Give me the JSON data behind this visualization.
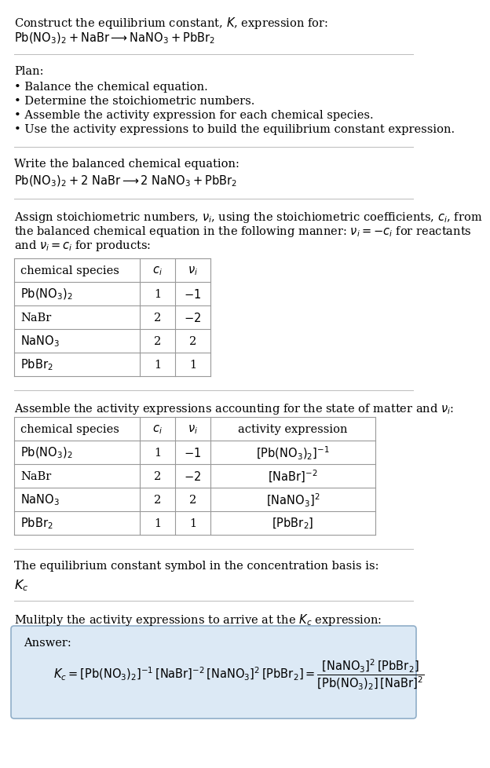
{
  "bg_color": "#ffffff",
  "text_color": "#000000",
  "title_line1": "Construct the equilibrium constant, $K$, expression for:",
  "title_line2": "$\\mathrm{Pb(NO_3)_2 + NaBr \\longrightarrow NaNO_3 + PbBr_2}$",
  "plan_header": "Plan:",
  "plan_items": [
    "• Balance the chemical equation.",
    "• Determine the stoichiometric numbers.",
    "• Assemble the activity expression for each chemical species.",
    "• Use the activity expressions to build the equilibrium constant expression."
  ],
  "balanced_header": "Write the balanced chemical equation:",
  "balanced_eq": "$\\mathrm{Pb(NO_3)_2 + 2\\ NaBr \\longrightarrow 2\\ NaNO_3 + PbBr_2}$",
  "stoich_intro_lines": [
    "Assign stoichiometric numbers, $\\nu_i$, using the stoichiometric coefficients, $c_i$, from",
    "the balanced chemical equation in the following manner: $\\nu_i = -c_i$ for reactants",
    "and $\\nu_i = c_i$ for products:"
  ],
  "table1_headers": [
    "chemical species",
    "$c_i$",
    "$\\nu_i$"
  ],
  "table1_rows": [
    [
      "$\\mathrm{Pb(NO_3)_2}$",
      "1",
      "$-1$"
    ],
    [
      "NaBr",
      "2",
      "$-2$"
    ],
    [
      "$\\mathrm{NaNO_3}$",
      "2",
      "2"
    ],
    [
      "$\\mathrm{PbBr_2}$",
      "1",
      "1"
    ]
  ],
  "assemble_header": "Assemble the activity expressions accounting for the state of matter and $\\nu_i$:",
  "table2_headers": [
    "chemical species",
    "$c_i$",
    "$\\nu_i$",
    "activity expression"
  ],
  "table2_rows": [
    [
      "$\\mathrm{Pb(NO_3)_2}$",
      "1",
      "$-1$",
      "$[\\mathrm{Pb(NO_3)_2}]^{-1}$"
    ],
    [
      "NaBr",
      "2",
      "$-2$",
      "$[\\mathrm{NaBr}]^{-2}$"
    ],
    [
      "$\\mathrm{NaNO_3}$",
      "2",
      "2",
      "$[\\mathrm{NaNO_3}]^{2}$"
    ],
    [
      "$\\mathrm{PbBr_2}$",
      "1",
      "1",
      "$[\\mathrm{PbBr_2}]$"
    ]
  ],
  "kc_intro": "The equilibrium constant symbol in the concentration basis is:",
  "kc_symbol": "$K_c$",
  "multiply_header": "Mulitply the activity expressions to arrive at the $K_c$ expression:",
  "answer_label": "Answer:",
  "answer_line1": "$K_c = [\\mathrm{Pb(NO_3)_2}]^{-1}\\,[\\mathrm{NaBr}]^{-2}\\,[\\mathrm{NaNO_3}]^{2}\\,[\\mathrm{PbBr_2}] = \\dfrac{[\\mathrm{NaNO_3}]^{2}\\,[\\mathrm{PbBr_2}]}{[\\mathrm{Pb(NO_3)_2}]\\,[\\mathrm{NaBr}]^{2}}$",
  "answer_box_color": "#dce9f5",
  "answer_box_edge": "#90aec8",
  "table_line_color": "#999999",
  "separator_color": "#bbbbbb",
  "font_size": 10.5,
  "font_size_table": 10.5
}
